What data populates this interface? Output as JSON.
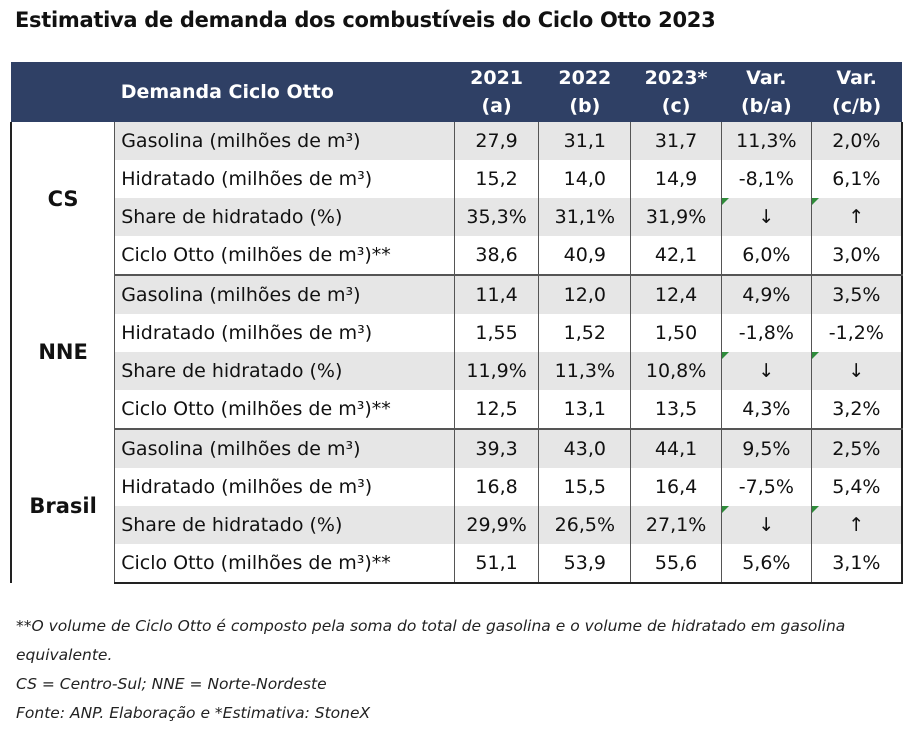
{
  "title": "Estimativa de demanda dos combustíveis do Ciclo Otto 2023",
  "header": {
    "label": "Demanda Ciclo Otto",
    "columns": [
      {
        "line1": "2021",
        "line2": "(a)"
      },
      {
        "line1": "2022",
        "line2": "(b)"
      },
      {
        "line1": "2023*",
        "line2": "(c)"
      },
      {
        "line1": "Var.",
        "line2": "(b/a)"
      },
      {
        "line1": "Var.",
        "line2": "(c/b)"
      }
    ]
  },
  "groups": [
    {
      "region": "CS",
      "rows": [
        {
          "label": "Gasolina (milhões de m³)",
          "values": [
            "27,9",
            "31,1",
            "31,7",
            "11,3%",
            "2,0%"
          ]
        },
        {
          "label": "Hidratado (milhões de m³)",
          "values": [
            "15,2",
            "14,0",
            "14,9",
            "-8,1%",
            "6,1%"
          ]
        },
        {
          "label": "Share de hidratado (%)",
          "values": [
            "35,3%",
            "31,1%",
            "31,9%",
            "↓",
            "↑"
          ]
        },
        {
          "label": "Ciclo Otto (milhões de m³)**",
          "values": [
            "38,6",
            "40,9",
            "42,1",
            "6,0%",
            "3,0%"
          ]
        }
      ]
    },
    {
      "region": "NNE",
      "rows": [
        {
          "label": "Gasolina (milhões de m³)",
          "values": [
            "11,4",
            "12,0",
            "12,4",
            "4,9%",
            "3,5%"
          ]
        },
        {
          "label": "Hidratado (milhões de m³)",
          "values": [
            "1,55",
            "1,52",
            "1,50",
            "-1,8%",
            "-1,2%"
          ]
        },
        {
          "label": "Share de hidratado (%)",
          "values": [
            "11,9%",
            "11,3%",
            "10,8%",
            "↓",
            "↓"
          ]
        },
        {
          "label": "Ciclo Otto (milhões de m³)**",
          "values": [
            "12,5",
            "13,1",
            "13,5",
            "4,3%",
            "3,2%"
          ]
        }
      ]
    },
    {
      "region": "Brasil",
      "rows": [
        {
          "label": "Gasolina (milhões de m³)",
          "values": [
            "39,3",
            "43,0",
            "44,1",
            "9,5%",
            "2,5%"
          ]
        },
        {
          "label": "Hidratado (milhões de m³)",
          "values": [
            "16,8",
            "15,5",
            "16,4",
            "-7,5%",
            "5,4%"
          ]
        },
        {
          "label": "Share de hidratado (%)",
          "values": [
            "29,9%",
            "26,5%",
            "27,1%",
            "↓",
            "↑"
          ]
        },
        {
          "label": "Ciclo Otto (milhões de m³)**",
          "values": [
            "51,1",
            "53,9",
            "55,6",
            "5,6%",
            "3,1%"
          ]
        }
      ]
    }
  ],
  "footnotes": [
    "**O volume de Ciclo Otto é composto pela soma do total de gasolina e o volume de hidratado em gasolina equivalente.",
    "CS = Centro-Sul; NNE = Norte-Nordeste",
    "Fonte: ANP. Elaboração e *Estimativa: StoneX"
  ],
  "colors": {
    "header_bg": "#2f4065",
    "header_text": "#ffffff",
    "row_shade": "#e6e6e6",
    "flag_marker": "#2e8b3a"
  }
}
